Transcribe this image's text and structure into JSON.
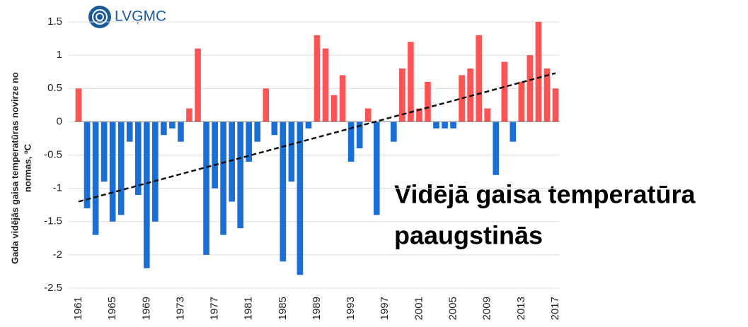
{
  "chart_data": {
    "type": "bar",
    "logo": "LVĢMC",
    "ylabel": [
      "Gada vidējās gaisa temperatūras novirze no",
      "normas, ºC"
    ],
    "annotation": [
      "Vidējā gaisa temperatūra",
      "paaugstinās"
    ],
    "categories": [
      "1961",
      null,
      null,
      null,
      "1965",
      null,
      null,
      null,
      "1969",
      null,
      null,
      null,
      "1973",
      null,
      null,
      null,
      "1977",
      null,
      null,
      null,
      "1981",
      null,
      null,
      null,
      "1985",
      null,
      null,
      null,
      "1989",
      null,
      null,
      null,
      "1993",
      null,
      null,
      null,
      "1997",
      null,
      null,
      null,
      "2001",
      null,
      null,
      null,
      "2005",
      null,
      null,
      null,
      "2009",
      null,
      null,
      null,
      "2013",
      null,
      null,
      null,
      "2017"
    ],
    "values": [
      0.5,
      -1.3,
      -1.7,
      -0.9,
      -1.5,
      -1.4,
      -0.3,
      -1.1,
      -2.2,
      -1.5,
      -0.2,
      -0.1,
      -0.3,
      0.2,
      1.1,
      -2.0,
      -1.0,
      -1.7,
      -1.2,
      -1.6,
      -0.6,
      -0.3,
      0.5,
      -0.2,
      -2.1,
      -0.9,
      -2.3,
      -0.1,
      1.3,
      1.1,
      0.4,
      0.7,
      -0.6,
      -0.4,
      0.2,
      -1.4,
      0,
      -0.3,
      0.8,
      1.2,
      0.2,
      0.6,
      -0.1,
      -0.1,
      -0.1,
      0.7,
      0.8,
      1.3,
      0.2,
      -0.8,
      0.9,
      -0.3,
      0.6,
      1.0,
      1.5,
      0.8,
      0.5
    ],
    "colors": {
      "positive": "#fb5454",
      "negative": "#1a6fd6"
    },
    "trend": [
      -1.2,
      0.73
    ],
    "ylim": [
      -2.5,
      1.5
    ],
    "yticks": [
      1.5,
      1,
      0.5,
      0,
      -0.5,
      -1,
      -1.5,
      -2,
      -2.5
    ],
    "grid": true
  }
}
